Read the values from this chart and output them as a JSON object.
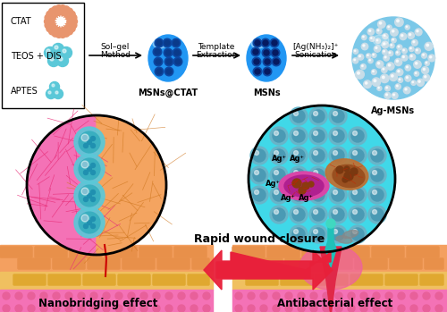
{
  "bg_color": "#ffffff",
  "top_section": {
    "ctat_color": "#e8956e",
    "teos_dis_color": "#5bc8d8",
    "aptes_color": "#5bc8d8",
    "ctat_label": "CTAT",
    "teos_dis_label": "TEOS + DIS",
    "aptes_label": "APTES",
    "arrow1_label1": "Sol–gel",
    "arrow1_label2": "Method",
    "arrow2_label1": "Template",
    "arrow2_label2": "Extraction",
    "arrow3_label1": "[Ag(NH₃)₂]⁺",
    "arrow3_label2": "Sonication",
    "msns_ctat_label": "MSNs@CTAT",
    "msns_label": "MSNs",
    "ag_msns_label": "Ag-MSNs",
    "msn_body": "#2196f3",
    "msn_dark": "#0d47a1",
    "msn_pore_bg": "#0a3a8a",
    "ag_body": "#7bc8e8",
    "ag_particle": "#c8dde8"
  },
  "bottom_section": {
    "left_circle_pink": "#f472b6",
    "left_circle_orange": "#f4a460",
    "left_np_outer": "#5bc8d8",
    "left_np_inner": "#3aafc0",
    "right_circle_bg": "#40d8e8",
    "right_np_outer": "#68b4c8",
    "right_np_inner": "#4a9ab4",
    "bacteria_pink": "#d946a8",
    "bacteria_dark": "#b02090",
    "dead_bacteria": "#b06030",
    "skin_orange_top": "#f4a060",
    "skin_orange_brick": "#e8904a",
    "skin_yellow_brick": "#f0c060",
    "skin_pink": "#f472b6",
    "skin_pink_dot": "#e8609a",
    "wound_red": "#e8203a",
    "wound_teal": "#20c8b0",
    "arrow_color": "#e8203a",
    "rapid_wound_text": "Rapid wound closure",
    "nanobridging_text": "Nanobridging effect",
    "antibacterial_text": "Antibacterial effect"
  }
}
